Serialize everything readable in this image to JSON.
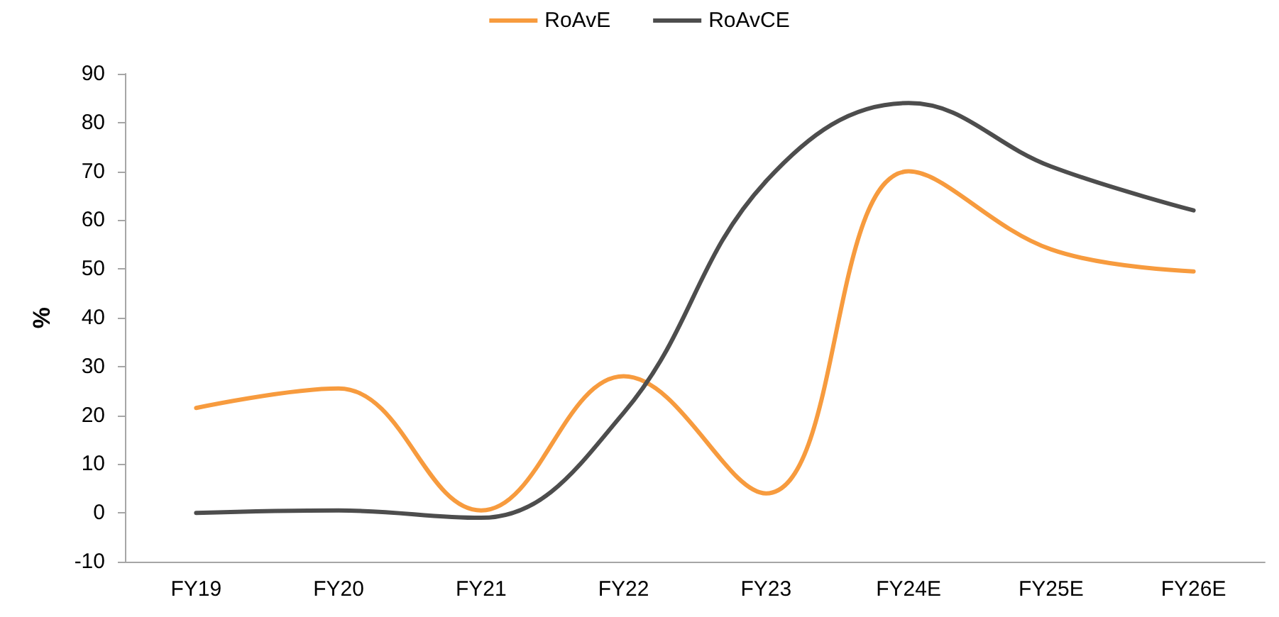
{
  "chart_data": {
    "type": "line",
    "ylabel": "%",
    "categories": [
      "FY19",
      "FY20",
      "FY21",
      "FY22",
      "FY23",
      "FY24E",
      "FY25E",
      "FY26E"
    ],
    "series": [
      {
        "name": "RoAvE",
        "color": "#f79b3e",
        "values": [
          21.5,
          25.5,
          0.5,
          28,
          4,
          70,
          54,
          49.5
        ]
      },
      {
        "name": "RoAvCE",
        "color": "#4d4d4d",
        "values": [
          0,
          0.5,
          -1,
          20.5,
          68,
          84,
          71,
          62
        ]
      }
    ],
    "ylim": [
      -10,
      90
    ],
    "yticks": [
      -10,
      0,
      10,
      20,
      30,
      40,
      50,
      60,
      70,
      80,
      90
    ],
    "grid": false,
    "legend": "top",
    "marker": "none",
    "line_style": "solid"
  }
}
